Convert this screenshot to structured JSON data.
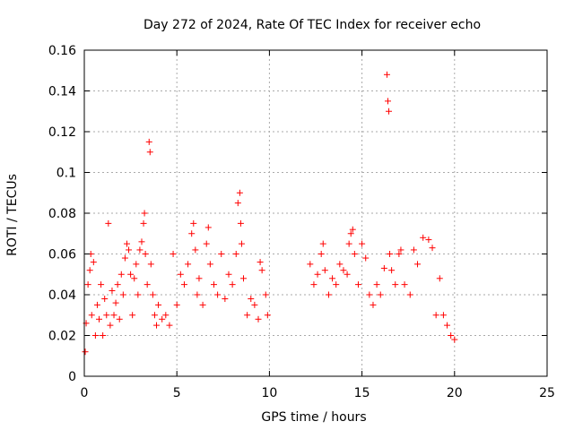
{
  "chart_data": {
    "type": "scatter",
    "title": "Day 272 of 2024, Rate Of TEC Index for receiver echo",
    "xlabel": "GPS time / hours",
    "ylabel": "ROTI / TECUs",
    "xlim": [
      0,
      25
    ],
    "ylim": [
      0,
      0.16
    ],
    "x_ticks": [
      0,
      5,
      10,
      15,
      20,
      25
    ],
    "x_tick_labels": [
      "0",
      "5",
      "10",
      "15",
      "20",
      "25"
    ],
    "y_ticks": [
      0,
      0.02,
      0.04,
      0.06,
      0.08,
      0.1,
      0.12,
      0.14,
      0.16
    ],
    "y_tick_labels": [
      "0",
      "0.02",
      "0.04",
      "0.06",
      "0.08",
      "0.1",
      "0.12",
      "0.14",
      "0.16"
    ],
    "grid": true,
    "marker": "plus",
    "color": "#ff0000",
    "series": [
      {
        "points": [
          [
            0.05,
            0.012
          ],
          [
            0.1,
            0.026
          ],
          [
            0.2,
            0.045
          ],
          [
            0.3,
            0.052
          ],
          [
            0.35,
            0.06
          ],
          [
            0.4,
            0.03
          ],
          [
            0.5,
            0.056
          ],
          [
            0.6,
            0.02
          ],
          [
            0.7,
            0.035
          ],
          [
            0.8,
            0.028
          ],
          [
            0.9,
            0.045
          ],
          [
            1.0,
            0.02
          ],
          [
            1.1,
            0.038
          ],
          [
            1.2,
            0.03
          ],
          [
            1.3,
            0.075
          ],
          [
            1.4,
            0.025
          ],
          [
            1.5,
            0.042
          ],
          [
            1.6,
            0.03
          ],
          [
            1.7,
            0.036
          ],
          [
            1.8,
            0.045
          ],
          [
            1.9,
            0.028
          ],
          [
            2.0,
            0.05
          ],
          [
            2.1,
            0.04
          ],
          [
            2.2,
            0.058
          ],
          [
            2.3,
            0.065
          ],
          [
            2.4,
            0.062
          ],
          [
            2.5,
            0.05
          ],
          [
            2.6,
            0.03
          ],
          [
            2.7,
            0.048
          ],
          [
            2.8,
            0.055
          ],
          [
            2.9,
            0.04
          ],
          [
            3.0,
            0.062
          ],
          [
            3.1,
            0.066
          ],
          [
            3.2,
            0.075
          ],
          [
            3.25,
            0.08
          ],
          [
            3.3,
            0.06
          ],
          [
            3.4,
            0.045
          ],
          [
            3.5,
            0.115
          ],
          [
            3.55,
            0.11
          ],
          [
            3.6,
            0.055
          ],
          [
            3.7,
            0.04
          ],
          [
            3.8,
            0.03
          ],
          [
            3.9,
            0.025
          ],
          [
            4.0,
            0.035
          ],
          [
            4.2,
            0.028
          ],
          [
            4.4,
            0.03
          ],
          [
            4.6,
            0.025
          ],
          [
            4.8,
            0.06
          ],
          [
            5.0,
            0.035
          ],
          [
            5.2,
            0.05
          ],
          [
            5.4,
            0.045
          ],
          [
            5.6,
            0.055
          ],
          [
            5.8,
            0.07
          ],
          [
            5.9,
            0.075
          ],
          [
            6.0,
            0.062
          ],
          [
            6.1,
            0.04
          ],
          [
            6.2,
            0.048
          ],
          [
            6.4,
            0.035
          ],
          [
            6.6,
            0.065
          ],
          [
            6.7,
            0.073
          ],
          [
            6.8,
            0.055
          ],
          [
            7.0,
            0.045
          ],
          [
            7.2,
            0.04
          ],
          [
            7.4,
            0.06
          ],
          [
            7.6,
            0.038
          ],
          [
            7.8,
            0.05
          ],
          [
            8.0,
            0.045
          ],
          [
            8.2,
            0.06
          ],
          [
            8.3,
            0.085
          ],
          [
            8.4,
            0.09
          ],
          [
            8.45,
            0.075
          ],
          [
            8.5,
            0.065
          ],
          [
            8.6,
            0.048
          ],
          [
            8.8,
            0.03
          ],
          [
            9.0,
            0.038
          ],
          [
            9.2,
            0.035
          ],
          [
            9.4,
            0.028
          ],
          [
            9.5,
            0.056
          ],
          [
            9.6,
            0.052
          ],
          [
            9.8,
            0.04
          ],
          [
            9.9,
            0.03
          ],
          [
            12.2,
            0.055
          ],
          [
            12.4,
            0.045
          ],
          [
            12.6,
            0.05
          ],
          [
            12.8,
            0.06
          ],
          [
            12.9,
            0.065
          ],
          [
            13.0,
            0.052
          ],
          [
            13.2,
            0.04
          ],
          [
            13.4,
            0.048
          ],
          [
            13.6,
            0.045
          ],
          [
            13.8,
            0.055
          ],
          [
            14.0,
            0.052
          ],
          [
            14.2,
            0.05
          ],
          [
            14.3,
            0.065
          ],
          [
            14.4,
            0.07
          ],
          [
            14.5,
            0.072
          ],
          [
            14.6,
            0.06
          ],
          [
            14.8,
            0.045
          ],
          [
            15.0,
            0.065
          ],
          [
            15.2,
            0.058
          ],
          [
            15.4,
            0.04
          ],
          [
            15.6,
            0.035
          ],
          [
            15.8,
            0.045
          ],
          [
            16.0,
            0.04
          ],
          [
            16.2,
            0.053
          ],
          [
            16.35,
            0.148
          ],
          [
            16.4,
            0.135
          ],
          [
            16.45,
            0.13
          ],
          [
            16.5,
            0.06
          ],
          [
            16.6,
            0.052
          ],
          [
            16.8,
            0.045
          ],
          [
            17.0,
            0.06
          ],
          [
            17.1,
            0.062
          ],
          [
            17.3,
            0.045
          ],
          [
            17.6,
            0.04
          ],
          [
            17.8,
            0.062
          ],
          [
            18.0,
            0.055
          ],
          [
            18.3,
            0.068
          ],
          [
            18.6,
            0.067
          ],
          [
            18.8,
            0.063
          ],
          [
            19.0,
            0.03
          ],
          [
            19.2,
            0.048
          ],
          [
            19.4,
            0.03
          ],
          [
            19.6,
            0.025
          ],
          [
            19.8,
            0.02
          ],
          [
            20.0,
            0.018
          ]
        ]
      }
    ]
  }
}
